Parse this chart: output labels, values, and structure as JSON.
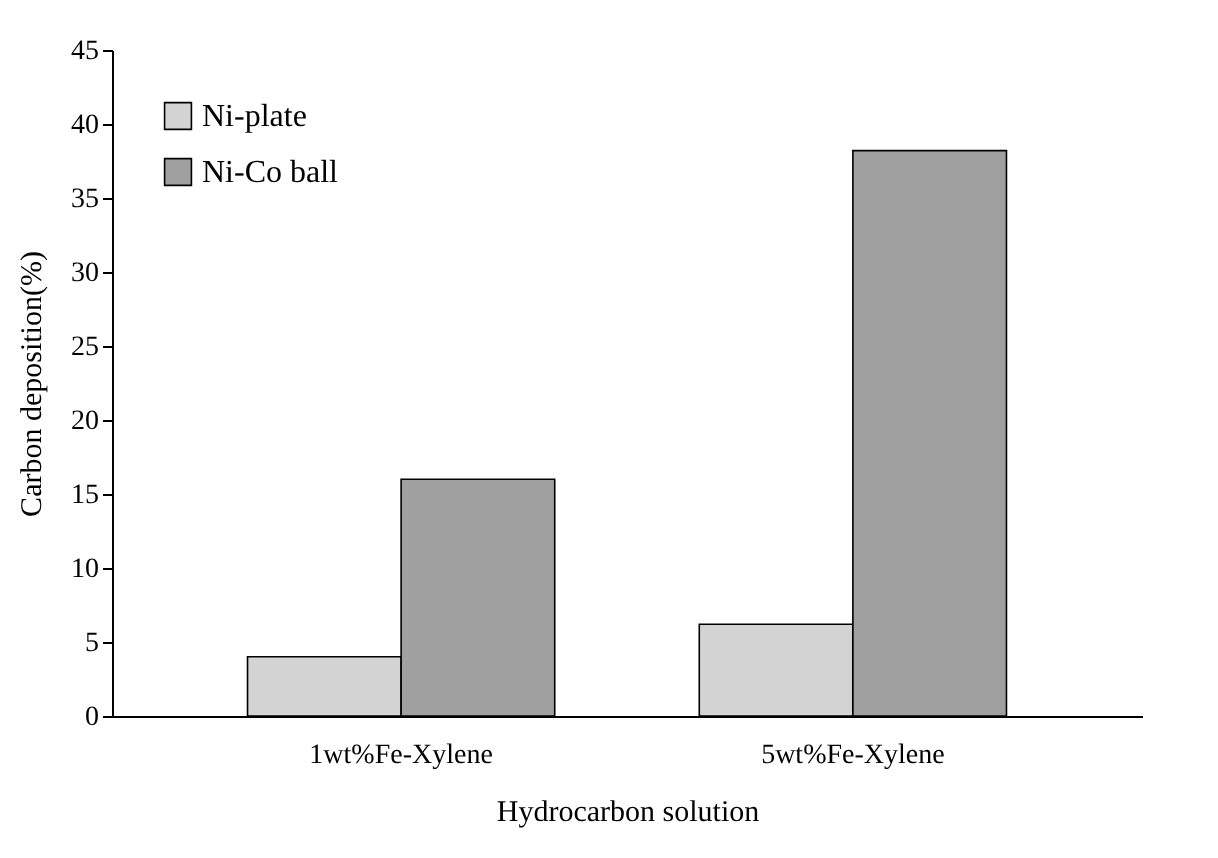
{
  "chart_data": {
    "type": "bar",
    "xlabel": "Hydrocarbon solution",
    "ylabel": "Carbon deposition(%)",
    "categories": [
      "1wt%Fe-Xylene",
      "5wt%Fe-Xylene"
    ],
    "series": [
      {
        "name": "Ni-plate",
        "color": "#d3d3d3",
        "values": [
          4,
          6.2
        ]
      },
      {
        "name": "Ni-Co ball",
        "color": "#a0a0a0",
        "values": [
          16,
          38.2
        ]
      }
    ],
    "ylim": [
      0,
      45
    ],
    "yticks": [
      0,
      5,
      10,
      15,
      20,
      25,
      30,
      35,
      40,
      45
    ],
    "grid": false,
    "legend": "top left"
  }
}
